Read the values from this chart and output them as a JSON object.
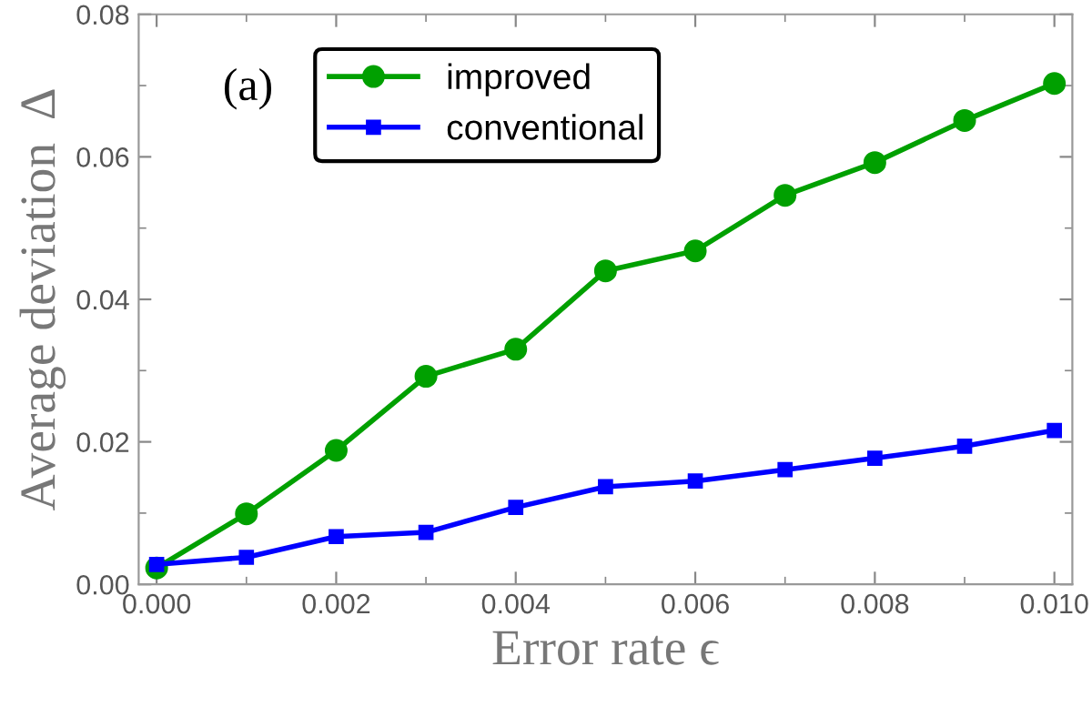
{
  "chart_data": {
    "type": "line",
    "xlabel": "Error rate ϵ",
    "ylabel": "Average deviation  Δ",
    "annotations": [
      "(a)"
    ],
    "x": [
      0.0,
      0.001,
      0.002,
      0.003,
      0.004,
      0.005,
      0.006,
      0.007,
      0.008,
      0.009,
      0.01
    ],
    "series": [
      {
        "name": "improved",
        "color": "#00a000",
        "marker": "circle",
        "values": [
          0.0023,
          0.0099,
          0.0188,
          0.0292,
          0.033,
          0.044,
          0.0468,
          0.0546,
          0.0592,
          0.0651,
          0.0703
        ]
      },
      {
        "name": "conventional",
        "color": "#0000ff",
        "marker": "square",
        "values": [
          0.0028,
          0.0038,
          0.0067,
          0.0073,
          0.0108,
          0.0137,
          0.0145,
          0.0161,
          0.0177,
          0.0194,
          0.0216
        ]
      }
    ],
    "xlim": [
      -0.0002,
      0.0102
    ],
    "ylim": [
      0,
      0.08
    ],
    "xticks": [
      {
        "value": 0,
        "label": "0.000"
      },
      {
        "value": 0.002,
        "label": "0.002"
      },
      {
        "value": 0.004,
        "label": "0.004"
      },
      {
        "value": 0.006,
        "label": "0.006"
      },
      {
        "value": 0.008,
        "label": "0.008"
      },
      {
        "value": 0.01,
        "label": "0.010"
      }
    ],
    "yticks": [
      {
        "value": 0,
        "label": "0.00"
      },
      {
        "value": 0.02,
        "label": "0.02"
      },
      {
        "value": 0.04,
        "label": "0.04"
      },
      {
        "value": 0.06,
        "label": "0.06"
      },
      {
        "value": 0.08,
        "label": "0.08"
      }
    ],
    "grid": false,
    "legend": "top left",
    "line_style": "solid"
  }
}
